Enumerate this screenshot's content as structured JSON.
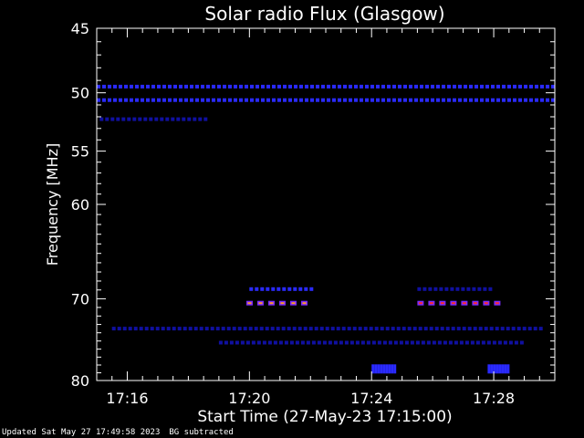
{
  "chart_data": {
    "type": "heatmap",
    "title": "Solar radio Flux (Glasgow)",
    "xlabel": "Start Time (27-May-23 17:15:00)",
    "ylabel": "Frequency [MHz]",
    "x_start": "17:15:00",
    "x_end": "17:30:00",
    "xlim_minutes": [
      0,
      15
    ],
    "xticks": [
      "17:16",
      "17:20",
      "17:24",
      "17:28"
    ],
    "xtick_minutes": [
      1,
      5,
      9,
      13
    ],
    "yticks": [
      45,
      50,
      55,
      60,
      70,
      80
    ],
    "ylim": [
      45,
      80
    ],
    "y_scale": "log (reversed: 45 at top, 80 at bottom)",
    "colormap": [
      "#000000",
      "#1010a0",
      "#2a2aff",
      "#7a2aff",
      "#ff2a2a",
      "#ff9a20",
      "#ffff80"
    ],
    "background": "#000000",
    "features": [
      {
        "name": "RFI line",
        "freq_mhz": 49.5,
        "t_start": 0.0,
        "t_end": 15.0,
        "intensity": 0.5
      },
      {
        "name": "RFI line",
        "freq_mhz": 50.6,
        "t_start": 0.0,
        "t_end": 15.0,
        "intensity": 0.6
      },
      {
        "name": "RFI line",
        "freq_mhz": 52.2,
        "t_start": 0.1,
        "t_end": 3.6,
        "intensity": 0.35
      },
      {
        "name": "emission",
        "freq_mhz": 68.9,
        "t_start": 5.0,
        "t_end": 7.0,
        "intensity": 0.55
      },
      {
        "name": "emission",
        "freq_mhz": 70.5,
        "t_start": 4.9,
        "t_end": 7.0,
        "intensity": 1.0
      },
      {
        "name": "emission",
        "freq_mhz": 68.9,
        "t_start": 10.5,
        "t_end": 13.0,
        "intensity": 0.45
      },
      {
        "name": "emission",
        "freq_mhz": 70.5,
        "t_start": 10.5,
        "t_end": 13.3,
        "intensity": 0.85
      },
      {
        "name": "weak line",
        "freq_mhz": 73.5,
        "t_start": 0.5,
        "t_end": 14.5,
        "intensity": 0.2
      },
      {
        "name": "weak line",
        "freq_mhz": 75.2,
        "t_start": 4.0,
        "t_end": 14.0,
        "intensity": 0.18
      },
      {
        "name": "burst patch",
        "freq_mhz": 78.5,
        "t_start": 9.0,
        "t_end": 9.8,
        "intensity": 0.55
      },
      {
        "name": "burst patch",
        "freq_mhz": 78.5,
        "t_start": 12.8,
        "t_end": 13.5,
        "intensity": 0.5
      }
    ]
  },
  "footer": {
    "updated": "Updated Sat May 27 17:49:58 2023",
    "bg_note": "BG subtracted"
  }
}
